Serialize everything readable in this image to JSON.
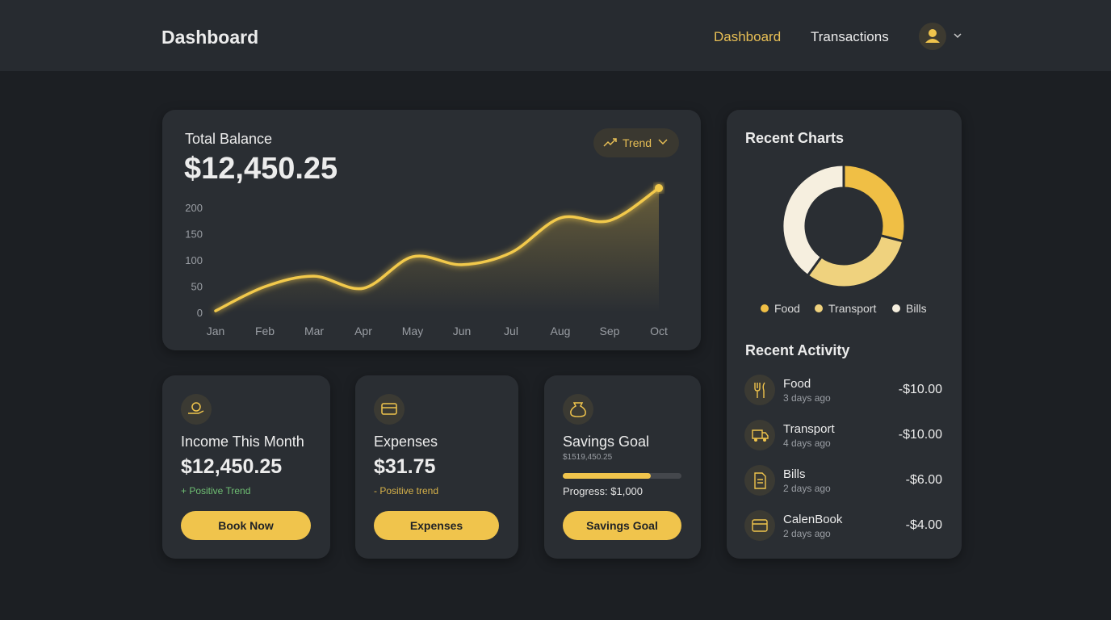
{
  "header": {
    "title": "Dashboard",
    "nav": [
      "Dashboard",
      "Transactions"
    ]
  },
  "balance": {
    "label": "Total Balance",
    "amount": "$12,450.25",
    "button": "Trend"
  },
  "chart_data": [
    {
      "type": "line",
      "categories": [
        "Jan",
        "Feb",
        "Mar",
        "Apr",
        "May",
        "Jun",
        "Jul",
        "Aug",
        "Sep",
        "Oct"
      ],
      "values": [
        3,
        49,
        69,
        46,
        106,
        91,
        114,
        180,
        175,
        237
      ],
      "ylim": [
        0,
        240
      ],
      "yticks": [
        0,
        50,
        100,
        150,
        200
      ],
      "color": "#f2c94c",
      "grid": false
    },
    {
      "type": "pie",
      "title": "Recent Charts",
      "categories": [
        "Food",
        "Transport",
        "Bills"
      ],
      "values": [
        29,
        31,
        40
      ],
      "colors": [
        "#f0bf45",
        "#efd27e",
        "#f6efdf"
      ],
      "donut": true
    }
  ],
  "cards": [
    {
      "title": "Income This Month",
      "amount": "$12,450.25",
      "note": "+ Positive Trend",
      "button": "Book Now"
    },
    {
      "title": "Expenses",
      "amount": "$31.75",
      "note": "- Positive trend",
      "button": "Expenses"
    },
    {
      "title": "Savings Goal",
      "sub": "$1519,450.25",
      "progress": 74,
      "note": "Progress: $1,000",
      "button": "Savings Goal"
    }
  ],
  "activity": {
    "title": "Recent Activity",
    "items": [
      {
        "name": "Food",
        "time": "3 days ago",
        "amount": "-$10.00"
      },
      {
        "name": "Transport",
        "time": "4 days ago",
        "amount": "-$10.00"
      },
      {
        "name": "Bills",
        "time": "2 days ago",
        "amount": "-$6.00"
      },
      {
        "name": "CalenBook",
        "time": "2 days ago",
        "amount": "-$4.00"
      }
    ]
  }
}
